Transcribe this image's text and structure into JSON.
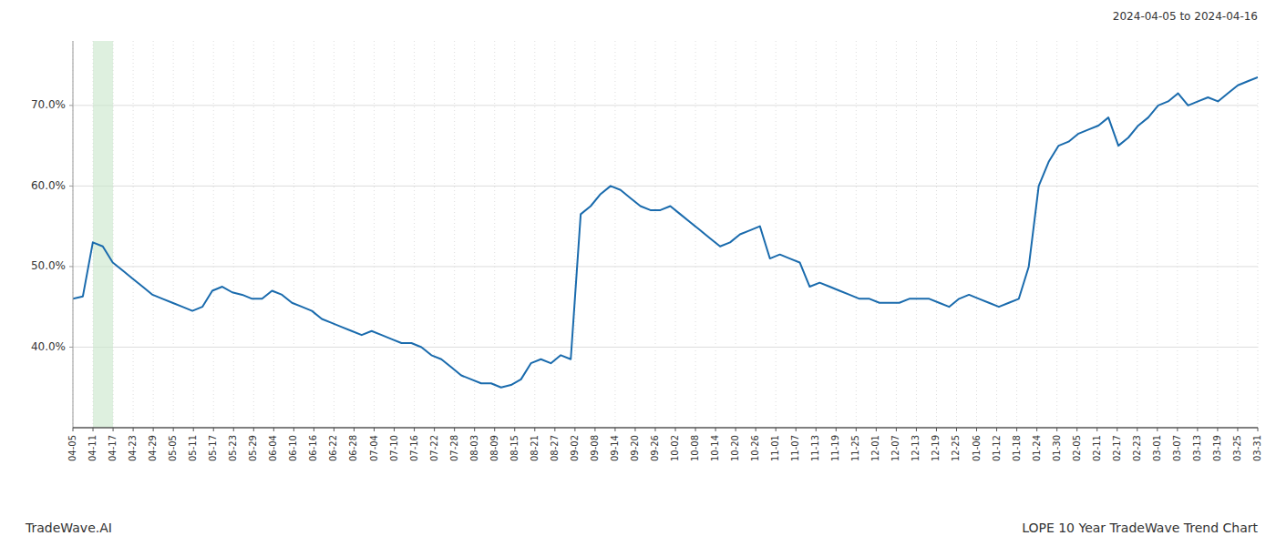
{
  "chart_data": {
    "type": "line",
    "title": "2024-04-05 to 2024-04-16",
    "annotations": [
      "TradeWave.AI",
      "LOPE 10 Year TradeWave Trend Chart"
    ],
    "color": "#1a6bad",
    "line_style": "solid",
    "grid": true,
    "x": [
      0,
      0.495798,
      0.991597,
      1.487395,
      1.983193,
      2.478992,
      2.97479,
      3.470588,
      3.966387,
      4.462185,
      4.957983,
      5.453782,
      5.94958,
      6.445378,
      6.941176,
      7.436975,
      7.932773,
      8.428571,
      8.92437,
      9.420168,
      9.915966,
      10.411765,
      10.907563,
      11.403361,
      11.89916,
      12.394958,
      12.890756,
      13.386555,
      13.882353,
      14.378151,
      14.87395,
      15.369748,
      15.865546,
      16.361345,
      16.857143,
      17.352941,
      17.848739,
      18.344538,
      18.840336,
      19.336134,
      19.831933,
      20.327731,
      20.823529,
      21.319328,
      21.815126,
      22.310924,
      22.806723,
      23.302521,
      23.798319,
      24.294118,
      24.789916,
      25.285714,
      25.781513,
      26.277311,
      26.773109,
      27.268908,
      27.764706,
      28.260504,
      28.756303,
      29.252101,
      29.747899,
      30.243697,
      30.739496,
      31.235294,
      31.731092,
      32.226891,
      32.722689,
      33.218487,
      33.714286,
      34.210084,
      34.705882,
      35.201681,
      35.697479,
      36.193277,
      36.689076,
      37.184874,
      37.680672,
      38.176471,
      38.672269,
      39.168067,
      39.663866,
      40.159664,
      40.655462,
      41.151261,
      41.647059,
      42.142857,
      42.638655,
      43.134454,
      43.630252,
      44.12605,
      44.621849,
      45.117647,
      45.613445,
      46.109244,
      46.605042,
      47.10084,
      47.596639,
      48.092437,
      48.588235,
      49.084034,
      49.579832,
      50.07563,
      50.571429,
      51.067227,
      51.563025,
      52.058824,
      52.554622,
      53.05042,
      53.546218,
      54.042017,
      54.537815,
      55.033613,
      55.529412,
      56.02521,
      56.521008,
      57.016807,
      57.512605,
      58.008403,
      58.504202,
      59
    ],
    "values": [
      46.0,
      46.3,
      53.0,
      52.5,
      50.5,
      49.5,
      48.5,
      47.5,
      46.5,
      46.0,
      45.5,
      45.0,
      44.5,
      45.0,
      47.0,
      47.5,
      46.8,
      46.5,
      46.0,
      46.0,
      47.0,
      46.5,
      45.5,
      45.0,
      44.5,
      43.5,
      43.0,
      42.5,
      42.0,
      41.5,
      42.0,
      41.5,
      41.0,
      40.5,
      40.5,
      40.0,
      39.0,
      38.5,
      37.5,
      36.5,
      36.0,
      35.5,
      35.5,
      35.0,
      35.3,
      36.0,
      38.0,
      38.5,
      38.0,
      39.0,
      38.5,
      56.5,
      57.5,
      59.0,
      60.0,
      59.5,
      58.5,
      57.5,
      57.0,
      57.0,
      57.5,
      56.5,
      55.5,
      54.5,
      53.5,
      52.5,
      53.0,
      54.0,
      54.5,
      55.0,
      51.0,
      51.5,
      51.0,
      50.5,
      47.5,
      48.0,
      47.5,
      47.0,
      46.5,
      46.0,
      46.0,
      45.5,
      45.5,
      45.5,
      46.0,
      46.0,
      46.0,
      45.5,
      45.0,
      46.0,
      46.5,
      46.0,
      45.5,
      45.0,
      45.5,
      46.0,
      50.0,
      60.0,
      63.0,
      65.0,
      65.5,
      66.5,
      67.0,
      67.5,
      68.5,
      65.0,
      66.0,
      67.5,
      68.5,
      70.0,
      70.5,
      71.5,
      70.0,
      70.5,
      71.0,
      70.5,
      71.5,
      72.5,
      73.0,
      73.5
    ],
    "highlights": [
      {
        "xlim": [
          1,
          2
        ],
        "color": "#c8e6c9"
      }
    ],
    "xlim": [
      0,
      59
    ],
    "xticks": [
      {
        "value": 0,
        "label": "04-05"
      },
      {
        "value": 1,
        "label": "04-11"
      },
      {
        "value": 2,
        "label": "04-17"
      },
      {
        "value": 3,
        "label": "04-23"
      },
      {
        "value": 4,
        "label": "04-29"
      },
      {
        "value": 5,
        "label": "05-05"
      },
      {
        "value": 6,
        "label": "05-11"
      },
      {
        "value": 7,
        "label": "05-17"
      },
      {
        "value": 8,
        "label": "05-23"
      },
      {
        "value": 9,
        "label": "05-29"
      },
      {
        "value": 10,
        "label": "06-04"
      },
      {
        "value": 11,
        "label": "06-10"
      },
      {
        "value": 12,
        "label": "06-16"
      },
      {
        "value": 13,
        "label": "06-22"
      },
      {
        "value": 14,
        "label": "06-28"
      },
      {
        "value": 15,
        "label": "07-04"
      },
      {
        "value": 16,
        "label": "07-10"
      },
      {
        "value": 17,
        "label": "07-16"
      },
      {
        "value": 18,
        "label": "07-22"
      },
      {
        "value": 19,
        "label": "07-28"
      },
      {
        "value": 20,
        "label": "08-03"
      },
      {
        "value": 21,
        "label": "08-09"
      },
      {
        "value": 22,
        "label": "08-15"
      },
      {
        "value": 23,
        "label": "08-21"
      },
      {
        "value": 24,
        "label": "08-27"
      },
      {
        "value": 25,
        "label": "09-02"
      },
      {
        "value": 26,
        "label": "09-08"
      },
      {
        "value": 27,
        "label": "09-14"
      },
      {
        "value": 28,
        "label": "09-20"
      },
      {
        "value": 29,
        "label": "09-26"
      },
      {
        "value": 30,
        "label": "10-02"
      },
      {
        "value": 31,
        "label": "10-08"
      },
      {
        "value": 32,
        "label": "10-14"
      },
      {
        "value": 33,
        "label": "10-20"
      },
      {
        "value": 34,
        "label": "10-26"
      },
      {
        "value": 35,
        "label": "11-01"
      },
      {
        "value": 36,
        "label": "11-07"
      },
      {
        "value": 37,
        "label": "11-13"
      },
      {
        "value": 38,
        "label": "11-19"
      },
      {
        "value": 39,
        "label": "11-25"
      },
      {
        "value": 40,
        "label": "12-01"
      },
      {
        "value": 41,
        "label": "12-07"
      },
      {
        "value": 42,
        "label": "12-13"
      },
      {
        "value": 43,
        "label": "12-19"
      },
      {
        "value": 44,
        "label": "12-25"
      },
      {
        "value": 45,
        "label": "01-06"
      },
      {
        "value": 46,
        "label": "01-12"
      },
      {
        "value": 47,
        "label": "01-18"
      },
      {
        "value": 48,
        "label": "01-24"
      },
      {
        "value": 49,
        "label": "01-30"
      },
      {
        "value": 50,
        "label": "02-05"
      },
      {
        "value": 51,
        "label": "02-11"
      },
      {
        "value": 52,
        "label": "02-17"
      },
      {
        "value": 53,
        "label": "02-23"
      },
      {
        "value": 54,
        "label": "03-01"
      },
      {
        "value": 55,
        "label": "03-07"
      },
      {
        "value": 56,
        "label": "03-13"
      },
      {
        "value": 57,
        "label": "03-19"
      },
      {
        "value": 58,
        "label": "03-25"
      },
      {
        "value": 59,
        "label": "03-31"
      }
    ],
    "ylim": [
      30,
      78
    ],
    "yticks": [
      {
        "value": 40.0,
        "label": "40.0%"
      },
      {
        "value": 50.0,
        "label": "50.0%"
      },
      {
        "value": 60.0,
        "label": "60.0%"
      },
      {
        "value": 70.0,
        "label": "70.0%"
      }
    ]
  }
}
